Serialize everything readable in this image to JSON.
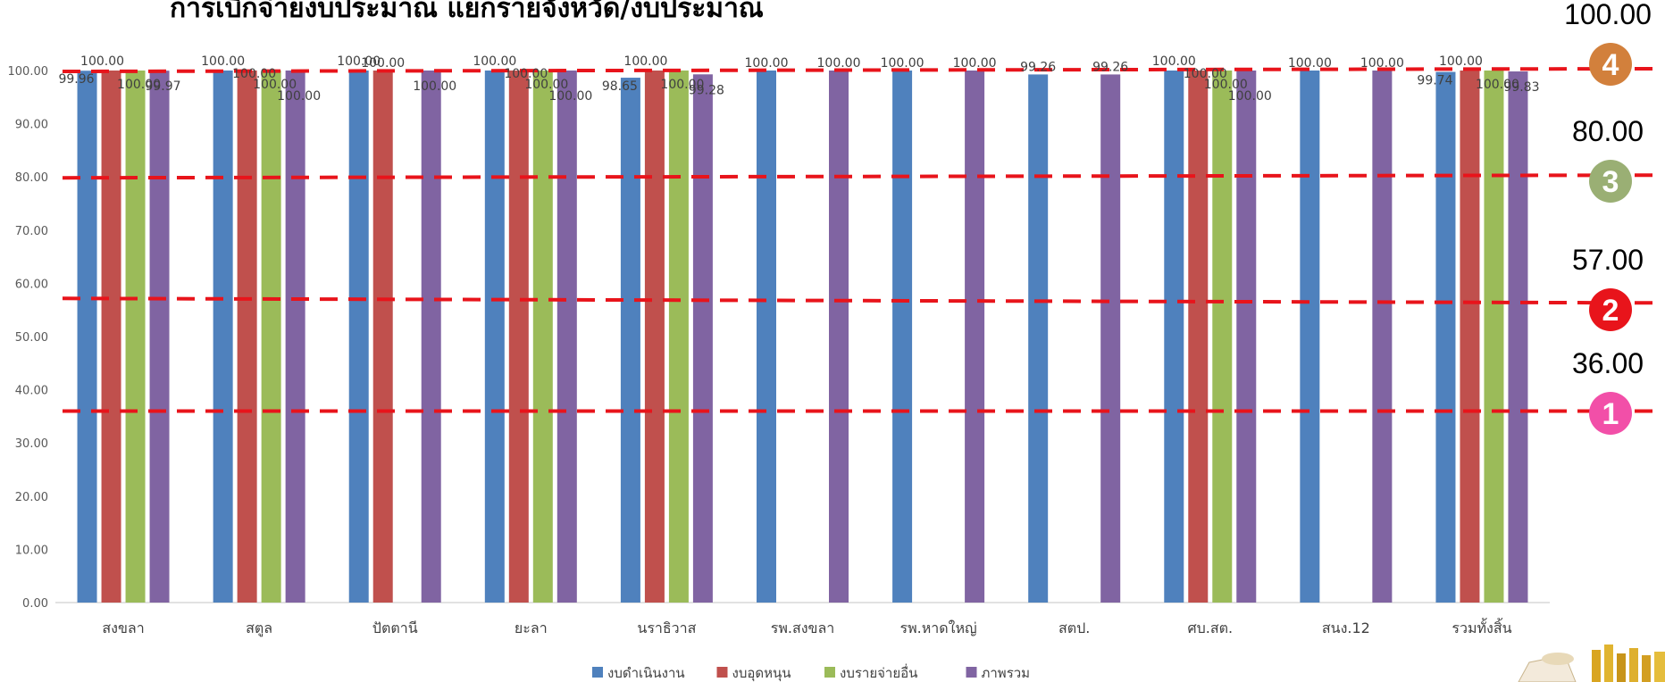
{
  "chart_data": {
    "type": "bar",
    "title": "การเบิกจ่ายงบประมาณ แยกรายจังหวัด/งบประมาณ",
    "categories": [
      "สงขลา",
      "สตูล",
      "ปัตตานี",
      "ยะลา",
      "นราธิวาส",
      "รพ.สงขลา",
      "รพ.หาดใหญ่",
      "สตป.",
      "ศบ.สต.",
      "สนง.12",
      "รวมทั้งสิ้น"
    ],
    "series": [
      {
        "name": "งบดำเนินงาน",
        "color": "#4F81BD",
        "values": [
          99.96,
          100.0,
          100.0,
          100.0,
          98.65,
          100.0,
          100.0,
          99.26,
          100.0,
          100.0,
          99.74
        ]
      },
      {
        "name": "งบอุดหนุน",
        "color": "#C0504D",
        "values": [
          100.0,
          100.0,
          100.0,
          100.0,
          100.0,
          null,
          null,
          null,
          100.0,
          null,
          100.0
        ]
      },
      {
        "name": "งบรายจ่ายอื่น",
        "color": "#9BBB59",
        "values": [
          100.0,
          100.0,
          null,
          100.0,
          100.0,
          null,
          null,
          null,
          100.0,
          null,
          100.0
        ]
      },
      {
        "name": "ภาพรวม",
        "color": "#8064A2",
        "values": [
          99.97,
          100.0,
          100.0,
          100.0,
          99.28,
          100.0,
          100.0,
          99.26,
          100.0,
          100.0,
          99.83
        ]
      }
    ],
    "ylim": [
      0,
      100
    ],
    "yticks": [
      "0.00",
      "10.00",
      "20.00",
      "30.00",
      "40.00",
      "50.00",
      "60.00",
      "70.00",
      "80.00",
      "90.00",
      "100.00"
    ],
    "legend_position": "bottom",
    "grid": false,
    "target_levels": [
      {
        "number": "4",
        "value": "100.00",
        "y": 100,
        "color": "#D2803C"
      },
      {
        "number": "3",
        "value": "80.00",
        "y": 80,
        "color": "#9AAF74"
      },
      {
        "number": "2",
        "value": "57.00",
        "y": 57,
        "color": "#E8141B"
      },
      {
        "number": "1",
        "value": "36.00",
        "y": 36,
        "color": "#F24FA8"
      }
    ],
    "target_line_color": "#E8141B"
  }
}
